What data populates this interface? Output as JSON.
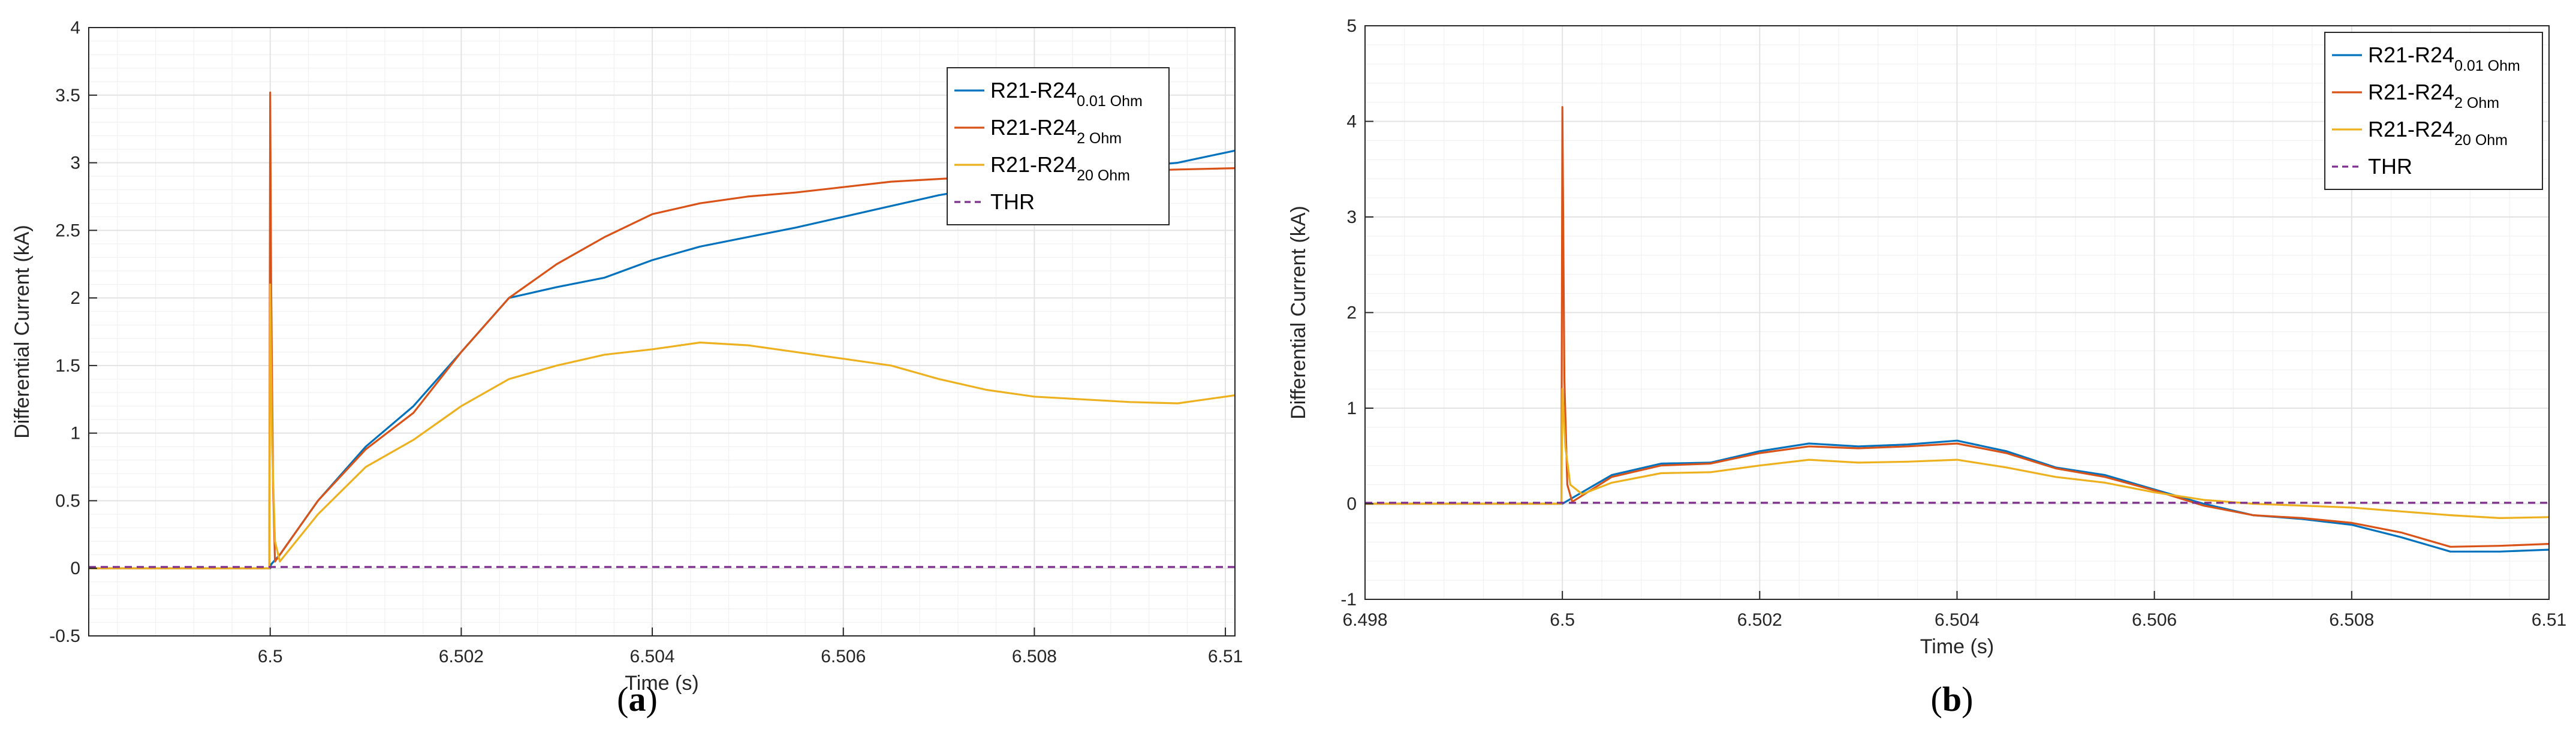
{
  "colors": {
    "blue": "#0072BD",
    "orange": "#D95319",
    "yellow": "#EDB120",
    "purple": "#7E2F8E",
    "grid": "#e3e3e3",
    "axis": "#262626"
  },
  "chart_data": [
    {
      "type": "line",
      "panel": "a",
      "caption": {
        "open": "(",
        "letter": "a",
        "close": ")"
      },
      "xlabel": "Time (s)",
      "ylabel": "Differential Current (kA)",
      "xlim": [
        6.4981,
        6.5101
      ],
      "ylim": [
        -0.5,
        4
      ],
      "xticks": [
        6.5,
        6.502,
        6.504,
        6.506,
        6.508,
        6.51
      ],
      "xtick_labels": [
        "6.5",
        "6.502",
        "6.504",
        "6.506",
        "6.508",
        "6.51"
      ],
      "yticks": [
        -0.5,
        0,
        0.5,
        1,
        1.5,
        2,
        2.5,
        3,
        3.5,
        4
      ],
      "ytick_labels": [
        "-0.5",
        "0",
        "0.5",
        "1",
        "1.5",
        "2",
        "2.5",
        "3",
        "3.5",
        "4"
      ],
      "legend": {
        "location": "top-right"
      },
      "series": [
        {
          "name": "R21-R24",
          "sub": "0.01 Ohm",
          "color_key": "blue",
          "x": [
            6.4981,
            6.5,
            6.50001,
            6.5001,
            6.5005,
            6.501,
            6.5015,
            6.502,
            6.5025,
            6.503,
            6.5035,
            6.504,
            6.5045,
            6.505,
            6.5055,
            6.506,
            6.5065,
            6.507,
            6.5075,
            6.508,
            6.5085,
            6.509,
            6.5095,
            6.5101
          ],
          "y": [
            0,
            0,
            0.03,
            0.1,
            0.5,
            0.9,
            1.2,
            1.6,
            2.0,
            2.08,
            2.15,
            2.28,
            2.38,
            2.45,
            2.52,
            2.6,
            2.68,
            2.76,
            2.82,
            2.88,
            2.93,
            2.97,
            3.0,
            3.09
          ]
        },
        {
          "name": "R21-R24",
          "sub": "2 Ohm",
          "color_key": "orange",
          "x": [
            6.4981,
            6.49999,
            6.5,
            6.50001,
            6.50003,
            6.50005,
            6.5001,
            6.5005,
            6.501,
            6.5015,
            6.502,
            6.5025,
            6.503,
            6.5035,
            6.504,
            6.5045,
            6.505,
            6.5055,
            6.506,
            6.5065,
            6.507,
            6.5075,
            6.508,
            6.5085,
            6.509,
            6.5095,
            6.5101
          ],
          "y": [
            0,
            0,
            3.52,
            2.1,
            0.6,
            0.05,
            0.1,
            0.5,
            0.88,
            1.15,
            1.6,
            2.0,
            2.25,
            2.45,
            2.62,
            2.7,
            2.75,
            2.78,
            2.82,
            2.86,
            2.88,
            2.9,
            2.92,
            2.93,
            2.94,
            2.95,
            2.96
          ]
        },
        {
          "name": "R21-R24",
          "sub": "20 Ohm",
          "color_key": "yellow",
          "x": [
            6.4981,
            6.49999,
            6.5,
            6.50002,
            6.50005,
            6.5001,
            6.5005,
            6.501,
            6.5015,
            6.502,
            6.5025,
            6.503,
            6.5035,
            6.504,
            6.5045,
            6.505,
            6.5055,
            6.506,
            6.5065,
            6.507,
            6.5075,
            6.508,
            6.5085,
            6.509,
            6.5095,
            6.5101
          ],
          "y": [
            0,
            0,
            2.1,
            0.9,
            0.2,
            0.05,
            0.4,
            0.75,
            0.95,
            1.2,
            1.4,
            1.5,
            1.58,
            1.62,
            1.67,
            1.65,
            1.6,
            1.55,
            1.5,
            1.4,
            1.32,
            1.27,
            1.25,
            1.23,
            1.22,
            1.28
          ]
        },
        {
          "name": "THR",
          "color_key": "purple",
          "dashed": true,
          "x": [
            6.4981,
            6.5101
          ],
          "y": [
            0.01,
            0.01
          ]
        }
      ]
    },
    {
      "type": "line",
      "panel": "b",
      "caption": {
        "open": "(",
        "letter": "b",
        "close": ")"
      },
      "xlabel": "Time (s)",
      "ylabel": "Differential Current (kA)",
      "xlim": [
        6.498,
        6.51
      ],
      "ylim": [
        -1,
        5
      ],
      "xticks": [
        6.498,
        6.5,
        6.502,
        6.504,
        6.506,
        6.508,
        6.51
      ],
      "xtick_labels": [
        "6.498",
        "6.5",
        "6.502",
        "6.504",
        "6.506",
        "6.508",
        "6.51"
      ],
      "yticks": [
        -1,
        0,
        1,
        2,
        3,
        4,
        5
      ],
      "ytick_labels": [
        "-1",
        "0",
        "1",
        "2",
        "3",
        "4",
        "5"
      ],
      "legend": {
        "location": "top-right"
      },
      "series": [
        {
          "name": "R21-R24",
          "sub": "0.01 Ohm",
          "color_key": "blue",
          "x": [
            6.498,
            6.5,
            6.5005,
            6.501,
            6.5015,
            6.502,
            6.5025,
            6.503,
            6.5035,
            6.504,
            6.5045,
            6.505,
            6.5055,
            6.506,
            6.5065,
            6.507,
            6.5075,
            6.508,
            6.5085,
            6.509,
            6.5095,
            6.51
          ],
          "y": [
            0,
            0,
            0.3,
            0.42,
            0.43,
            0.55,
            0.63,
            0.6,
            0.62,
            0.66,
            0.55,
            0.38,
            0.3,
            0.15,
            0.0,
            -0.12,
            -0.16,
            -0.22,
            -0.35,
            -0.5,
            -0.5,
            -0.48
          ]
        },
        {
          "name": "R21-R24",
          "sub": "2 Ohm",
          "color_key": "orange",
          "x": [
            6.498,
            6.49999,
            6.5,
            6.50002,
            6.50005,
            6.5001,
            6.5005,
            6.501,
            6.5015,
            6.502,
            6.5025,
            6.503,
            6.5035,
            6.504,
            6.5045,
            6.505,
            6.5055,
            6.506,
            6.5065,
            6.507,
            6.5075,
            6.508,
            6.5085,
            6.509,
            6.5095,
            6.51
          ],
          "y": [
            0,
            0,
            4.15,
            1.3,
            0.2,
            0.02,
            0.28,
            0.4,
            0.42,
            0.53,
            0.6,
            0.58,
            0.6,
            0.63,
            0.53,
            0.37,
            0.28,
            0.14,
            -0.02,
            -0.12,
            -0.15,
            -0.2,
            -0.3,
            -0.45,
            -0.44,
            -0.42
          ]
        },
        {
          "name": "R21-R24",
          "sub": "20 Ohm",
          "color_key": "yellow",
          "x": [
            6.498,
            6.49999,
            6.5,
            6.50003,
            6.50008,
            6.5002,
            6.5005,
            6.501,
            6.5015,
            6.502,
            6.5025,
            6.503,
            6.5035,
            6.504,
            6.5045,
            6.505,
            6.5055,
            6.506,
            6.5065,
            6.507,
            6.5075,
            6.508,
            6.5085,
            6.509,
            6.5095,
            6.51
          ],
          "y": [
            0,
            0,
            1.2,
            0.6,
            0.2,
            0.1,
            0.22,
            0.32,
            0.33,
            0.4,
            0.46,
            0.43,
            0.44,
            0.46,
            0.38,
            0.28,
            0.22,
            0.12,
            0.04,
            0.0,
            -0.02,
            -0.04,
            -0.08,
            -0.12,
            -0.15,
            -0.14
          ]
        },
        {
          "name": "THR",
          "color_key": "purple",
          "dashed": true,
          "x": [
            6.498,
            6.51
          ],
          "y": [
            0.01,
            0.01
          ]
        }
      ]
    }
  ]
}
